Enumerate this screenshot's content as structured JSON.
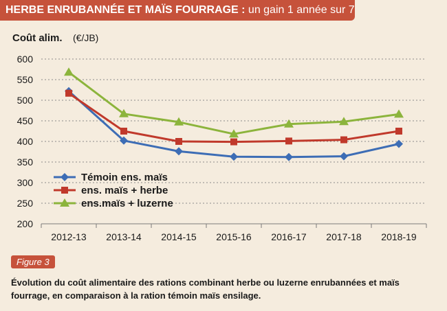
{
  "header": {
    "title_bold": "HERBE ENRUBANNÉE ET MAÏS FOURRAGE :",
    "title_rest": " un gain 1 année sur 7"
  },
  "figure": {
    "tag": "Figure 3",
    "caption": "Évolution du coût alimentaire des rations combinant herbe ou luzerne enrubannées et maïs fourrage, en comparaison à la ration témoin maïs ensilage."
  },
  "colors": {
    "banner": "#c6523b",
    "background": "#f5ecde",
    "series": [
      "#3d6db5",
      "#c0392b",
      "#8cb43c"
    ]
  },
  "chart_data": {
    "type": "line",
    "title": "",
    "ylabel_bold": "Coût alim.",
    "ylabel_unit": "(€/JB)",
    "xlabel": "",
    "ylim": [
      200,
      600
    ],
    "yticks": [
      200,
      250,
      300,
      350,
      400,
      450,
      500,
      550,
      600
    ],
    "grid": "horizontal-dotted",
    "legend": "bottom-left",
    "categories": [
      "2012-13",
      "2013-14",
      "2014-15",
      "2015-16",
      "2016-17",
      "2017-18",
      "2018-19"
    ],
    "series": [
      {
        "name": "Témoin ens. maïs",
        "marker": "diamond",
        "color": "#3d6db5",
        "values": [
          522,
          402,
          376,
          363,
          362,
          364,
          394
        ]
      },
      {
        "name": "ens. maïs + herbe",
        "marker": "square",
        "color": "#c0392b",
        "values": [
          517,
          425,
          400,
          399,
          401,
          404,
          425
        ]
      },
      {
        "name": "ens.maïs + luzerne",
        "marker": "triangle",
        "color": "#8cb43c",
        "values": [
          568,
          467,
          447,
          418,
          442,
          448,
          466
        ]
      }
    ]
  }
}
